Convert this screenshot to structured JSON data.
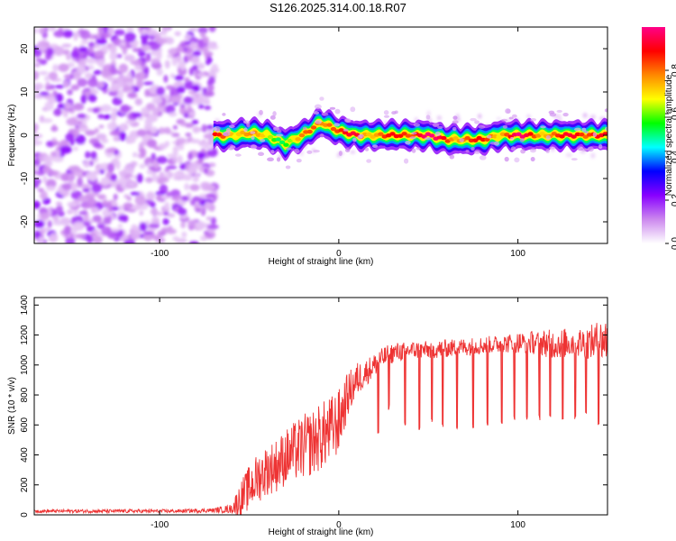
{
  "title": "S126.2025.314.00.18.R07",
  "chart_data": [
    {
      "type": "heatmap",
      "xlabel": "Height of straight line (km)",
      "ylabel": "Frequency (Hz)",
      "xlim": [
        -170,
        150
      ],
      "ylim": [
        -25,
        25
      ],
      "xticks": [
        -100,
        0,
        100
      ],
      "yticks": [
        -20,
        -10,
        0,
        10,
        20
      ],
      "colorbar": {
        "label": "Normalized spectral amplitude",
        "range": [
          0,
          1
        ],
        "ticks": [
          0,
          0.2,
          0.4,
          0.6,
          0.8
        ],
        "colors": [
          "#ffffff",
          "#cc88ee",
          "#8800ff",
          "#0000ff",
          "#00ffff",
          "#00ff00",
          "#ffff00",
          "#ff8800",
          "#ff0000",
          "#ff0088"
        ]
      },
      "noise_region_x": [
        -170,
        -69
      ],
      "signal_start_x": -70,
      "ridge": {
        "x": [
          -70,
          -60,
          -50,
          -40,
          -30,
          -20,
          -10,
          0,
          10,
          20,
          30,
          40,
          50,
          60,
          70,
          80,
          90,
          100,
          110,
          120,
          130,
          140,
          150
        ],
        "freq": [
          0,
          0,
          0.5,
          0,
          -2,
          0,
          3,
          1,
          0,
          0,
          0,
          0,
          0,
          -1,
          -1,
          -1,
          0,
          0,
          0,
          0,
          0,
          0,
          0
        ],
        "peak_amplitude": [
          0.9,
          0.85,
          0.8,
          0.7,
          0.6,
          0.8,
          0.95,
          0.85,
          1.0,
          0.8,
          0.9,
          1.0,
          1.0,
          0.95,
          0.85,
          0.9,
          0.85,
          1.0,
          0.9,
          0.85,
          0.95,
          1.0,
          0.9
        ]
      }
    },
    {
      "type": "line",
      "xlabel": "Height of straight line (km)",
      "ylabel": "SNR (10 * v/v)",
      "xlim": [
        -170,
        150
      ],
      "ylim": [
        0,
        1450
      ],
      "xticks": [
        -100,
        0,
        100
      ],
      "yticks": [
        0,
        200,
        400,
        600,
        800,
        1000,
        1200,
        1400
      ],
      "series": [
        {
          "name": "SNR",
          "color": "#ee3333",
          "x": [
            -170,
            -150,
            -120,
            -90,
            -70,
            -60,
            -55,
            -50,
            -45,
            -40,
            -35,
            -30,
            -25,
            -20,
            -15,
            -10,
            -5,
            0,
            5,
            10,
            15,
            20,
            25,
            30,
            40,
            50,
            60,
            70,
            80,
            90,
            100,
            110,
            120,
            130,
            140,
            145,
            150
          ],
          "mean": [
            25,
            25,
            25,
            25,
            30,
            40,
            100,
            180,
            250,
            300,
            330,
            380,
            420,
            450,
            480,
            520,
            560,
            620,
            800,
            900,
            950,
            1000,
            1050,
            1080,
            1100,
            1100,
            1110,
            1120,
            1130,
            1140,
            1150,
            1150,
            1140,
            1150,
            1150,
            1160,
            1170
          ],
          "amplitude": [
            10,
            12,
            12,
            12,
            15,
            30,
            120,
            150,
            170,
            170,
            180,
            190,
            200,
            220,
            220,
            230,
            230,
            220,
            150,
            120,
            90,
            80,
            70,
            70,
            60,
            60,
            60,
            60,
            60,
            60,
            70,
            80,
            100,
            100,
            110,
            140,
            160
          ],
          "dip_x": [
            22,
            28,
            37,
            45,
            52,
            58,
            66,
            75,
            83,
            91,
            98,
            105,
            112,
            118,
            125,
            132,
            138,
            145
          ],
          "dip_y": [
            550,
            720,
            600,
            580,
            620,
            600,
            590,
            600,
            610,
            620,
            640,
            650,
            650,
            660,
            640,
            650,
            680,
            620
          ]
        }
      ]
    }
  ]
}
